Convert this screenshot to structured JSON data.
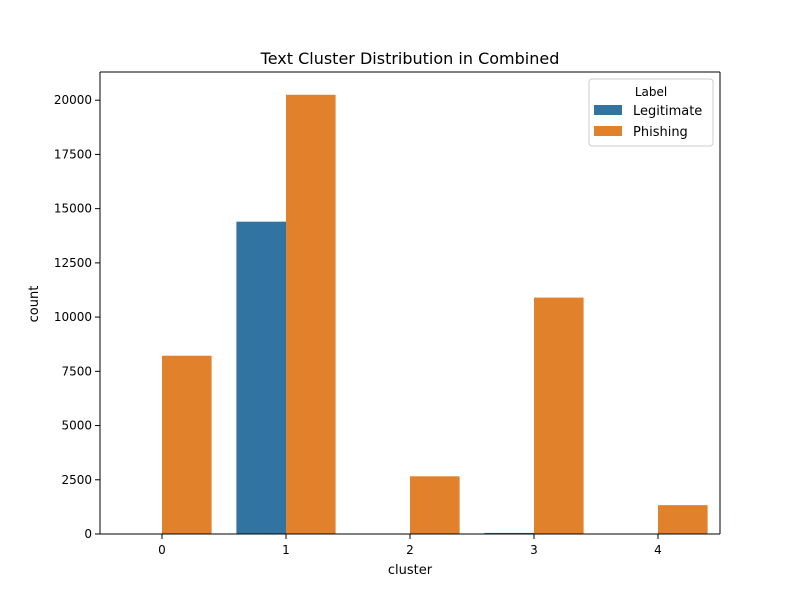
{
  "chart_data": {
    "type": "bar",
    "title": "Text Cluster Distribution in Combined",
    "xlabel": "cluster",
    "ylabel": "count",
    "categories": [
      "0",
      "1",
      "2",
      "3",
      "4"
    ],
    "ylim": [
      0,
      21300
    ],
    "yticks": [
      0,
      2500,
      5000,
      7500,
      10000,
      12500,
      15000,
      17500,
      20000
    ],
    "ytick_labels": [
      "0",
      "2500",
      "5000",
      "7500",
      "10000",
      "12500",
      "15000",
      "17500",
      "20000"
    ],
    "grid": false,
    "legend": {
      "title": "Label",
      "placement": "top-right"
    },
    "series": [
      {
        "name": "Legitimate",
        "color": "#3274a1",
        "values": [
          0,
          14400,
          0,
          50,
          0
        ]
      },
      {
        "name": "Phishing",
        "color": "#e1812c",
        "values": [
          8220,
          20250,
          2660,
          10900,
          1330
        ]
      }
    ]
  }
}
